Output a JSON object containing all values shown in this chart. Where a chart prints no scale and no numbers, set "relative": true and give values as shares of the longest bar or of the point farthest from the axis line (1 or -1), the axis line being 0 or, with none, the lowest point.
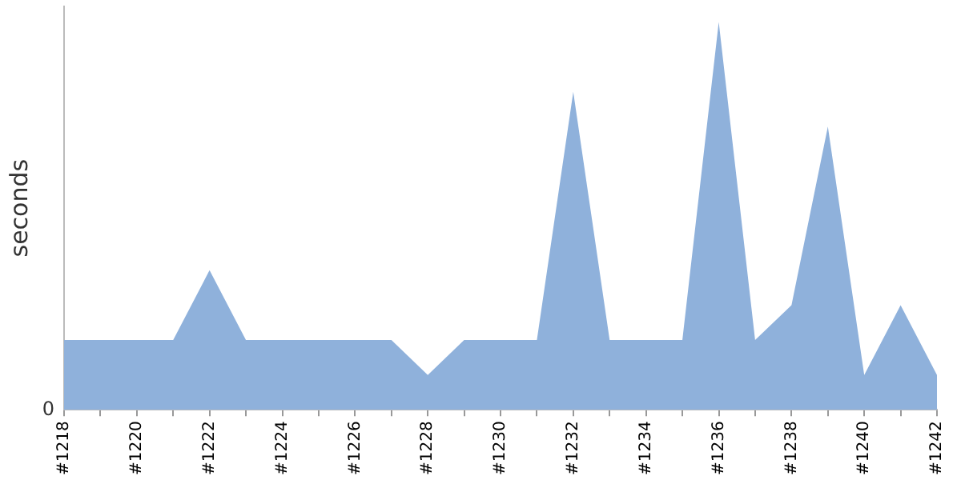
{
  "chart_data": {
    "type": "area",
    "relative": true,
    "ylabel": "seconds",
    "color": "#8fb1db",
    "categories": [
      "#1218",
      null,
      "#1220",
      null,
      "#1222",
      null,
      "#1224",
      null,
      "#1226",
      null,
      "#1228",
      null,
      "#1230",
      null,
      "#1232",
      null,
      "#1234",
      null,
      "#1236",
      null,
      "#1238",
      null,
      "#1240",
      null,
      "#1242"
    ],
    "values": [
      0.18,
      0.18,
      0.18,
      0.18,
      0.36,
      0.18,
      0.18,
      0.18,
      0.18,
      0.18,
      0.09,
      0.18,
      0.18,
      0.18,
      0.82,
      0.18,
      0.18,
      0.18,
      1,
      0.18,
      0.27,
      0.73,
      0.09,
      0.27,
      0.09
    ],
    "annotations": [
      "0"
    ],
    "grid": false,
    "legend": false
  }
}
